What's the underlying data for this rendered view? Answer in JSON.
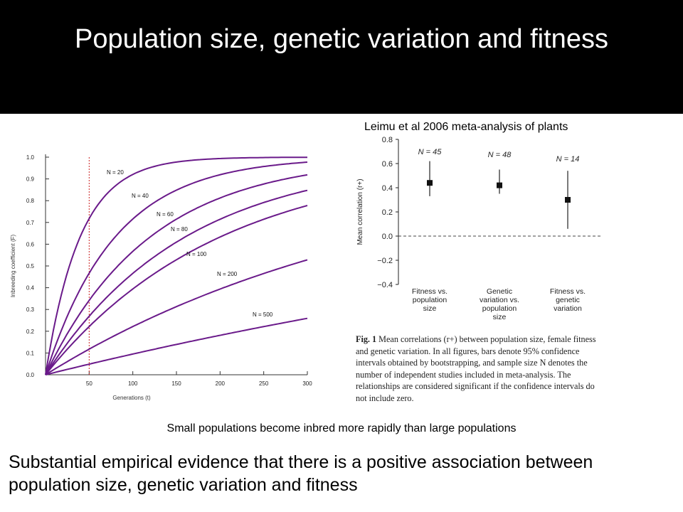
{
  "slide": {
    "title": "Population size, genetic variation and fitness",
    "citation": "Leimu et al 2006 meta-analysis of plants",
    "caption_small": "Small populations become inbred more rapidly than large populations",
    "caption_main": "Substantial empirical evidence that there is a positive association between population size, genetic variation and fitness"
  },
  "colors": {
    "background": "#000000",
    "panel": "#ffffff",
    "curve": "#6a1a8a",
    "reference_line": "#cc2222",
    "marker": "#111111"
  },
  "chart_data": [
    {
      "type": "line",
      "ylabel": "Inbreeding coefficient (F)",
      "xlabel": "Generations (t)",
      "xlim": [
        0,
        300
      ],
      "ylim": [
        0.0,
        1.0
      ],
      "xticks": [
        50,
        100,
        150,
        200,
        250,
        300
      ],
      "yticks": [
        0.0,
        0.1,
        0.2,
        0.3,
        0.4,
        0.5,
        0.6,
        0.7,
        0.8,
        0.9,
        1.0
      ],
      "grid": false,
      "reference_line": {
        "x": 50,
        "style": "dotted"
      },
      "series": [
        {
          "name": "N = 20",
          "N": 20
        },
        {
          "name": "N = 40",
          "N": 40
        },
        {
          "name": "N = 60",
          "N": 60
        },
        {
          "name": "N = 80",
          "N": 80
        },
        {
          "name": "N = 100",
          "N": 100
        },
        {
          "name": "N = 200",
          "N": 200
        },
        {
          "name": "N = 500",
          "N": 500
        }
      ]
    },
    {
      "type": "scatter",
      "ylabel": "Mean correlation (r+)",
      "ylim": [
        -0.4,
        0.8
      ],
      "yticks": [
        "0.8",
        "0.6",
        "0.4",
        "0.2",
        "0.0",
        "−0.2",
        "−0.4"
      ],
      "reference_line": {
        "y": 0.0,
        "style": "dashed"
      },
      "categories": [
        "Fitness vs. population size",
        "Genetic variation vs. population size",
        "Fitness vs. genetic variation"
      ],
      "category_lines": [
        [
          "Fitness vs.",
          "population",
          "size"
        ],
        [
          "Genetic",
          "variation vs.",
          "population",
          "size"
        ],
        [
          "Fitness vs.",
          "genetic",
          "variation"
        ]
      ],
      "points": [
        {
          "label": "N = 45",
          "mean": 0.44,
          "ci_low": 0.33,
          "ci_high": 0.62
        },
        {
          "label": "N = 48",
          "mean": 0.42,
          "ci_low": 0.35,
          "ci_high": 0.55
        },
        {
          "label": "N = 14",
          "mean": 0.3,
          "ci_low": 0.06,
          "ci_high": 0.54
        }
      ],
      "caption": {
        "label": "Fig. 1",
        "text": "Mean correlations (r+) between population size, female fitness and genetic variation. In all figures, bars denote 95% confidence intervals obtained by bootstrapping, and sample size N denotes the number of independent studies included in meta-analysis. The relationships are considered significant if the confidence intervals do not include zero."
      }
    }
  ]
}
